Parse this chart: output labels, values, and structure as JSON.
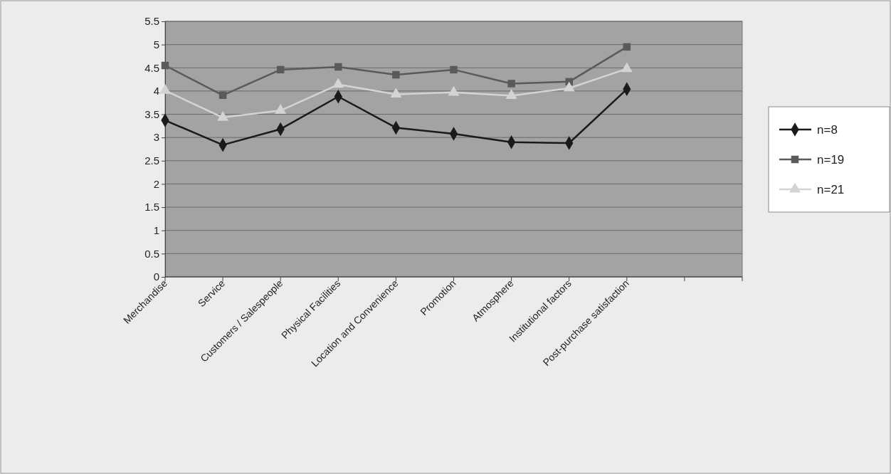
{
  "chart_data": {
    "type": "line",
    "categories": [
      "Merchandise",
      "Service",
      "Customers / Salespeople",
      "Physical Facilities",
      "Location and Convenience",
      "Promotion",
      "Atmosphere",
      "Institutional factors",
      "Post-purchase satisfaction",
      null
    ],
    "series": [
      {
        "name": "n=8",
        "color": "#1a1a1a",
        "marker": "diamond",
        "values": [
          3.37,
          2.84,
          3.18,
          3.88,
          3.21,
          3.08,
          2.9,
          2.88,
          4.04,
          null
        ]
      },
      {
        "name": "n=19",
        "color": "#5a5a5a",
        "marker": "square",
        "values": [
          4.55,
          3.91,
          4.46,
          4.52,
          4.35,
          4.46,
          4.16,
          4.2,
          4.95,
          null
        ]
      },
      {
        "name": "n=21",
        "color": "#d4d4d4",
        "marker": "triangle",
        "values": [
          4.01,
          3.43,
          3.58,
          4.14,
          3.93,
          3.97,
          3.9,
          4.06,
          4.48,
          null
        ]
      }
    ],
    "ylim": [
      0,
      5.5
    ],
    "yticks": [
      0,
      0.5,
      1,
      1.5,
      2,
      2.5,
      3,
      3.5,
      4,
      4.5,
      5,
      5.5
    ],
    "grid": "y",
    "legend": "right"
  }
}
